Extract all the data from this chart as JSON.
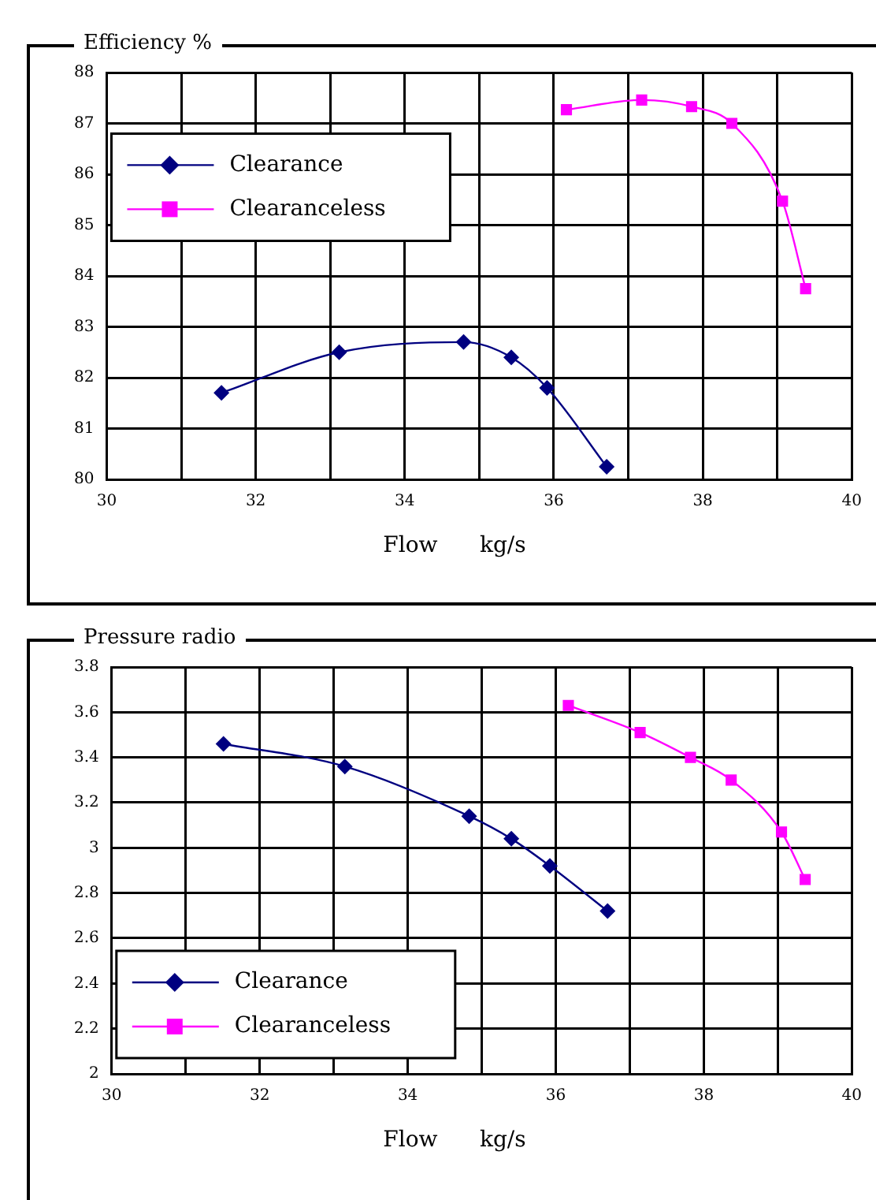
{
  "chart_data": [
    {
      "type": "line",
      "title": "Efficiency %",
      "xlabel": "Flow      kg/s",
      "xlim": [
        30,
        40
      ],
      "xticks": [
        30,
        {
          "value": 31,
          "label": null
        },
        32,
        {
          "value": 33,
          "label": null
        },
        34,
        {
          "value": 35,
          "label": null
        },
        36,
        {
          "value": 37,
          "label": null
        },
        38,
        {
          "value": 39,
          "label": null
        },
        40
      ],
      "ylim": [
        80,
        88
      ],
      "yticks": [
        80,
        81,
        82,
        83,
        84,
        85,
        86,
        87,
        88
      ],
      "grid": true,
      "legend": "left",
      "series": [
        {
          "name": "Clearance",
          "color": "#000080",
          "marker": "diamond",
          "x": [
            31.54,
            33.12,
            34.79,
            35.43,
            35.91,
            36.71
          ],
          "values": [
            81.7,
            82.5,
            82.7,
            82.4,
            81.8,
            80.25
          ]
        },
        {
          "name": "Clearanceless",
          "color": "#ff00ff",
          "marker": "square",
          "x": [
            36.17,
            37.18,
            37.85,
            38.39,
            39.07,
            39.38
          ],
          "values": [
            87.27,
            87.46,
            87.33,
            87.0,
            85.47,
            83.75
          ]
        }
      ]
    },
    {
      "type": "line",
      "title": "Pressure radio",
      "xlabel": "Flow      kg/s",
      "xlim": [
        30,
        40
      ],
      "xticks": [
        30,
        {
          "value": 31,
          "label": null
        },
        32,
        {
          "value": 33,
          "label": null
        },
        34,
        {
          "value": 35,
          "label": null
        },
        36,
        {
          "value": 37,
          "label": null
        },
        38,
        {
          "value": 39,
          "label": null
        },
        40
      ],
      "ylim": [
        2,
        3.8
      ],
      "yticks": [
        2,
        2.2,
        2.4,
        2.6,
        2.8,
        3,
        3.2,
        3.4,
        3.6,
        3.8
      ],
      "grid": true,
      "legend": "bottom left",
      "series": [
        {
          "name": "Clearance",
          "color": "#000080",
          "marker": "diamond",
          "x": [
            31.51,
            33.15,
            34.83,
            35.4,
            35.92,
            36.7
          ],
          "values": [
            3.46,
            3.36,
            3.14,
            3.04,
            2.92,
            2.72
          ]
        },
        {
          "name": "Clearanceless",
          "color": "#ff00ff",
          "marker": "square",
          "x": [
            36.17,
            37.14,
            37.82,
            38.37,
            39.05,
            39.37
          ],
          "values": [
            3.63,
            3.51,
            3.4,
            3.3,
            3.07,
            2.86
          ]
        }
      ]
    }
  ]
}
